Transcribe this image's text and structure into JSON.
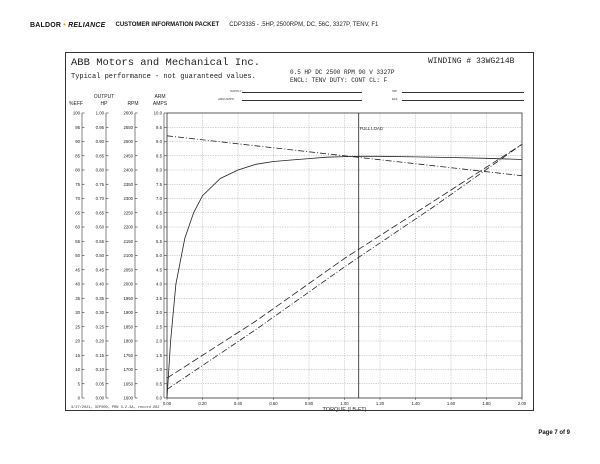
{
  "page": {
    "brand_left": "BALDOR",
    "brand_sep": "•",
    "brand_right": "RELIANCE",
    "packet_title": "CUSTOMER INFORMATION PACKET",
    "cdp_line": "CDP3335 - .5HP, 2500RPM, DC, 56C, 3327P, TENV, F1",
    "page_number": "Page 7 of 9"
  },
  "sheet": {
    "company": "ABB Motors and Mechanical Inc.",
    "typical": "Typical performance - not guaranteed values.",
    "winding": "WINDING # 33WG214B",
    "spec_line1": "0.5 HP  DC  2500 RPM  90 V  3327P",
    "spec_line2": "ENCL: TENV  DUTY: CONT  CL: F",
    "field_labels": [
      "SUPPLY",
      "ARM AMPS",
      "INP",
      "EFF"
    ],
    "footer_note": "3/27/2021, 3CP000, PRN 3.2.3A, record 262"
  },
  "chart_data": {
    "type": "line",
    "xlabel": "TORQUE (LB-FT)",
    "xlim": [
      0,
      2.0
    ],
    "x_ticks": [
      "0.00",
      "0.20",
      "0.40",
      "0.60",
      "0.80",
      "1.00",
      "1.20",
      "1.40",
      "1.60",
      "1.80",
      "2.00"
    ],
    "column_headers": [
      {
        "top": "",
        "bottom": "%EFF"
      },
      {
        "top": "OUTPUT",
        "bottom": "HP"
      },
      {
        "top": "",
        "bottom": "RPM"
      },
      {
        "top": "ARM",
        "bottom": "AMPS"
      }
    ],
    "y_axes": [
      {
        "name": "%EFF",
        "ticks": [
          "100",
          "95",
          "90",
          "85",
          "80",
          "75",
          "70",
          "65",
          "60",
          "55",
          "50",
          "45",
          "40",
          "35",
          "30",
          "25",
          "20",
          "15",
          "10",
          "5",
          "0"
        ]
      },
      {
        "name": "HP",
        "ticks": [
          "1.00",
          "0.95",
          "0.90",
          "0.85",
          "0.80",
          "0.75",
          "0.70",
          "0.65",
          "0.60",
          "0.55",
          "0.50",
          "0.45",
          "0.40",
          "0.35",
          "0.30",
          "0.25",
          "0.20",
          "0.15",
          "0.10",
          "0.05",
          "0.00"
        ]
      },
      {
        "name": "RPM",
        "ticks": [
          "2600",
          "2550",
          "2500",
          "2450",
          "2400",
          "2350",
          "2300",
          "2250",
          "2200",
          "2150",
          "2100",
          "2050",
          "2000",
          "1950",
          "1900",
          "1850",
          "1800",
          "1750",
          "1700",
          "1650",
          "1600"
        ]
      },
      {
        "name": "AMPS",
        "ticks": [
          "10.0",
          "9.5",
          "9.0",
          "8.5",
          "8.0",
          "7.5",
          "7.0",
          "6.5",
          "6.0",
          "5.5",
          "5.0",
          "4.5",
          "4.0",
          "3.5",
          "3.0",
          "2.5",
          "2.0",
          "1.5",
          "1.0",
          "0.5",
          "0.0"
        ]
      }
    ],
    "grid": true,
    "annotations": [
      {
        "text": "FULL LOAD",
        "x": 1.08
      }
    ],
    "series": [
      {
        "axis": "%EFF",
        "style": "solid",
        "x": [
          0.0,
          0.02,
          0.05,
          0.1,
          0.15,
          0.2,
          0.3,
          0.4,
          0.5,
          0.6,
          0.7,
          0.8,
          0.9,
          1.0,
          1.1,
          1.2,
          1.4,
          1.6,
          1.8,
          2.0
        ],
        "y": [
          0,
          20,
          40,
          56,
          65,
          71,
          77,
          80,
          82,
          83,
          83.5,
          84,
          84.5,
          84.7,
          84.8,
          84.8,
          84.6,
          84.4,
          84.1,
          83.7
        ]
      },
      {
        "axis": "RPM",
        "style": "dash-dot",
        "x": [
          0.0,
          0.5,
          1.0,
          1.5,
          2.0
        ],
        "y": [
          2520,
          2485,
          2450,
          2415,
          2380
        ]
      },
      {
        "axis": "HP",
        "style": "long-dash",
        "x": [
          0.0,
          0.5,
          1.0,
          1.5,
          2.0
        ],
        "y": [
          0.07,
          0.27,
          0.49,
          0.69,
          0.89
        ]
      },
      {
        "axis": "AMPS",
        "style": "dash-dot",
        "x": [
          0.0,
          0.5,
          1.0,
          1.5,
          2.0
        ],
        "y": [
          0.3,
          2.4,
          4.6,
          6.7,
          8.9
        ]
      }
    ]
  }
}
